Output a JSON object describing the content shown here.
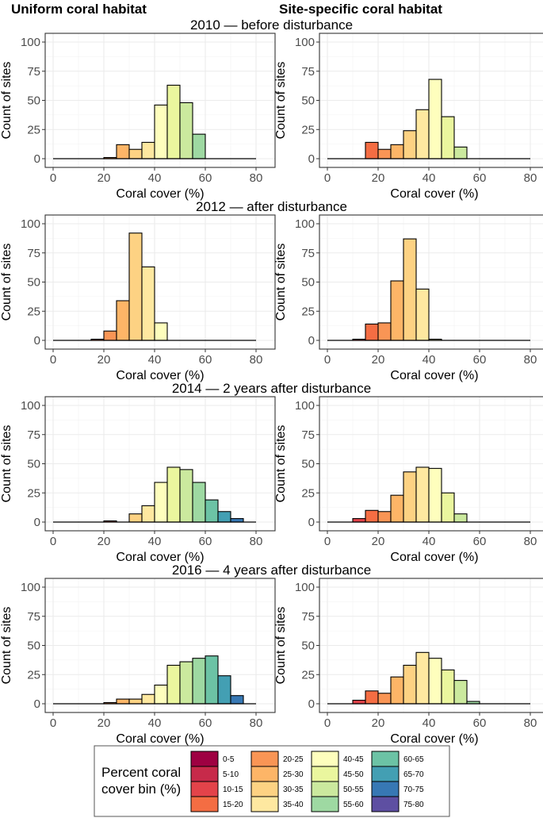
{
  "column_titles": [
    "Uniform coral habitat",
    "Site-specific coral habitat"
  ],
  "row_titles": [
    "2010 — before disturbance",
    "2012 — after disturbance",
    "2014 — 2 years after disturbance",
    "2016 — 4 years after disturbance"
  ],
  "legend": {
    "title_line1": "Percent coral",
    "title_line2": "cover bin (%)",
    "bins": [
      "0-5",
      "5-10",
      "10-15",
      "15-20",
      "20-25",
      "25-30",
      "30-35",
      "35-40",
      "40-45",
      "45-50",
      "50-55",
      "55-60",
      "60-65",
      "65-70",
      "70-75",
      "75-80"
    ],
    "colors": [
      "#9e0142",
      "#c72a4a",
      "#e3434a",
      "#f46d43",
      "#f99555",
      "#fdb567",
      "#fdd283",
      "#fee8a0",
      "#fefebd",
      "#eaf69e",
      "#cbe99e",
      "#9ed9a2",
      "#6cc3a5",
      "#439fb3",
      "#3778b4",
      "#5e4fa2"
    ]
  },
  "chart_data": [
    {
      "type": "bar",
      "panel": "2010 uniform",
      "title": "2010 — before disturbance",
      "column": "Uniform coral habitat",
      "xlabel": "Coral cover (%)",
      "ylabel": "Count of sites",
      "xlim": [
        0,
        80
      ],
      "ylim": [
        0,
        100
      ],
      "xticks": [
        0,
        20,
        40,
        60,
        80
      ],
      "yticks": [
        0,
        25,
        50,
        75,
        100
      ],
      "bin_width": 5,
      "categories": [
        "0-5",
        "5-10",
        "10-15",
        "15-20",
        "20-25",
        "25-30",
        "30-35",
        "35-40",
        "40-45",
        "45-50",
        "50-55",
        "55-60",
        "60-65",
        "65-70",
        "70-75",
        "75-80"
      ],
      "values": [
        0,
        0,
        0,
        0,
        1,
        12,
        8,
        14,
        46,
        63,
        48,
        21,
        0,
        0,
        0,
        0
      ]
    },
    {
      "type": "bar",
      "panel": "2010 site-specific",
      "title": "2010 — before disturbance",
      "column": "Site-specific coral habitat",
      "xlabel": "Coral cover (%)",
      "ylabel": "Count of sites",
      "xlim": [
        0,
        80
      ],
      "ylim": [
        0,
        100
      ],
      "xticks": [
        0,
        20,
        40,
        60,
        80
      ],
      "yticks": [
        0,
        25,
        50,
        75,
        100
      ],
      "bin_width": 5,
      "categories": [
        "0-5",
        "5-10",
        "10-15",
        "15-20",
        "20-25",
        "25-30",
        "30-35",
        "35-40",
        "40-45",
        "45-50",
        "50-55",
        "55-60",
        "60-65",
        "65-70",
        "70-75",
        "75-80"
      ],
      "values": [
        0,
        0,
        0,
        14,
        8,
        12,
        24,
        42,
        68,
        36,
        10,
        0,
        0,
        0,
        0,
        0
      ]
    },
    {
      "type": "bar",
      "panel": "2012 uniform",
      "title": "2012 — after disturbance",
      "column": "Uniform coral habitat",
      "xlabel": "Coral cover (%)",
      "ylabel": "Count of sites",
      "xlim": [
        0,
        80
      ],
      "ylim": [
        0,
        100
      ],
      "xticks": [
        0,
        20,
        40,
        60,
        80
      ],
      "yticks": [
        0,
        25,
        50,
        75,
        100
      ],
      "bin_width": 5,
      "categories": [
        "0-5",
        "5-10",
        "10-15",
        "15-20",
        "20-25",
        "25-30",
        "30-35",
        "35-40",
        "40-45",
        "45-50",
        "50-55",
        "55-60",
        "60-65",
        "65-70",
        "70-75",
        "75-80"
      ],
      "values": [
        0,
        0,
        0,
        1,
        8,
        34,
        92,
        63,
        15,
        0,
        0,
        0,
        0,
        0,
        0,
        0
      ]
    },
    {
      "type": "bar",
      "panel": "2012 site-specific",
      "title": "2012 — after disturbance",
      "column": "Site-specific coral habitat",
      "xlabel": "Coral cover (%)",
      "ylabel": "Count of sites",
      "xlim": [
        0,
        80
      ],
      "ylim": [
        0,
        100
      ],
      "xticks": [
        0,
        20,
        40,
        60,
        80
      ],
      "yticks": [
        0,
        25,
        50,
        75,
        100
      ],
      "bin_width": 5,
      "categories": [
        "0-5",
        "5-10",
        "10-15",
        "15-20",
        "20-25",
        "25-30",
        "30-35",
        "35-40",
        "40-45",
        "45-50",
        "50-55",
        "55-60",
        "60-65",
        "65-70",
        "70-75",
        "75-80"
      ],
      "values": [
        0,
        0,
        1,
        14,
        15,
        51,
        87,
        44,
        1,
        0,
        0,
        0,
        0,
        0,
        0,
        0
      ]
    },
    {
      "type": "bar",
      "panel": "2014 uniform",
      "title": "2014 — 2 years after disturbance",
      "column": "Uniform coral habitat",
      "xlabel": "Coral cover (%)",
      "ylabel": "Count of sites",
      "xlim": [
        0,
        80
      ],
      "ylim": [
        0,
        100
      ],
      "xticks": [
        0,
        20,
        40,
        60,
        80
      ],
      "yticks": [
        0,
        25,
        50,
        75,
        100
      ],
      "bin_width": 5,
      "categories": [
        "0-5",
        "5-10",
        "10-15",
        "15-20",
        "20-25",
        "25-30",
        "30-35",
        "35-40",
        "40-45",
        "45-50",
        "50-55",
        "55-60",
        "60-65",
        "65-70",
        "70-75",
        "75-80"
      ],
      "values": [
        0,
        0,
        0,
        0,
        1,
        0,
        7,
        14,
        34,
        47,
        45,
        34,
        19,
        9,
        3,
        0
      ]
    },
    {
      "type": "bar",
      "panel": "2014 site-specific",
      "title": "2014 — 2 years after disturbance",
      "column": "Site-specific coral habitat",
      "xlabel": "Coral cover (%)",
      "ylabel": "Count of sites",
      "xlim": [
        0,
        80
      ],
      "ylim": [
        0,
        100
      ],
      "xticks": [
        0,
        20,
        40,
        60,
        80
      ],
      "yticks": [
        0,
        25,
        50,
        75,
        100
      ],
      "bin_width": 5,
      "categories": [
        "0-5",
        "5-10",
        "10-15",
        "15-20",
        "20-25",
        "25-30",
        "30-35",
        "35-40",
        "40-45",
        "45-50",
        "50-55",
        "55-60",
        "60-65",
        "65-70",
        "70-75",
        "75-80"
      ],
      "values": [
        0,
        0,
        3,
        10,
        9,
        23,
        43,
        47,
        46,
        25,
        7,
        0,
        0,
        0,
        0,
        0
      ]
    },
    {
      "type": "bar",
      "panel": "2016 uniform",
      "title": "2016 — 4 years after disturbance",
      "column": "Uniform coral habitat",
      "xlabel": "Coral cover (%)",
      "ylabel": "Count of sites",
      "xlim": [
        0,
        80
      ],
      "ylim": [
        0,
        100
      ],
      "xticks": [
        0,
        20,
        40,
        60,
        80
      ],
      "yticks": [
        0,
        25,
        50,
        75,
        100
      ],
      "bin_width": 5,
      "categories": [
        "0-5",
        "5-10",
        "10-15",
        "15-20",
        "20-25",
        "25-30",
        "30-35",
        "35-40",
        "40-45",
        "45-50",
        "50-55",
        "55-60",
        "60-65",
        "65-70",
        "70-75",
        "75-80"
      ],
      "values": [
        0,
        0,
        0,
        0,
        1,
        4,
        4,
        8,
        16,
        33,
        36,
        39,
        41,
        24,
        7,
        0
      ]
    },
    {
      "type": "bar",
      "panel": "2016 site-specific",
      "title": "2016 — 4 years after disturbance",
      "column": "Site-specific coral habitat",
      "xlabel": "Coral cover (%)",
      "ylabel": "Count of sites",
      "xlim": [
        0,
        80
      ],
      "ylim": [
        0,
        100
      ],
      "xticks": [
        0,
        20,
        40,
        60,
        80
      ],
      "yticks": [
        0,
        25,
        50,
        75,
        100
      ],
      "bin_width": 5,
      "categories": [
        "0-5",
        "5-10",
        "10-15",
        "15-20",
        "20-25",
        "25-30",
        "30-35",
        "35-40",
        "40-45",
        "45-50",
        "50-55",
        "55-60",
        "60-65",
        "65-70",
        "70-75",
        "75-80"
      ],
      "values": [
        0,
        0,
        3,
        11,
        9,
        23,
        33,
        44,
        39,
        29,
        20,
        2,
        0,
        0,
        0,
        0
      ]
    }
  ]
}
